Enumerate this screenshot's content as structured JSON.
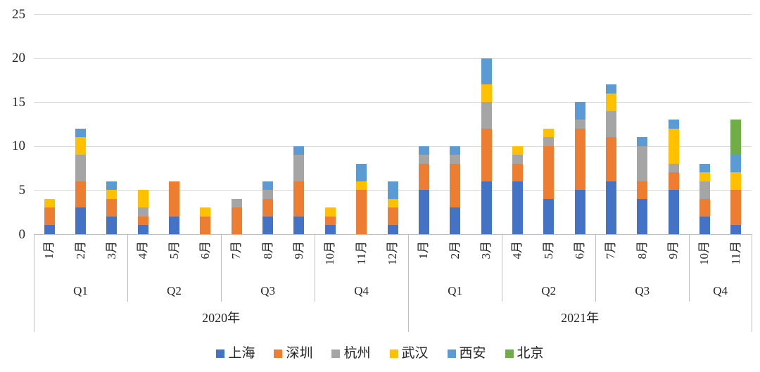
{
  "chart_data": {
    "type": "bar",
    "stacked": true,
    "orientation": "vertical",
    "title": "",
    "xlabel": "",
    "ylabel": "",
    "ylim": [
      0,
      25
    ],
    "yticks": [
      0,
      5,
      10,
      15,
      20,
      25
    ],
    "grid": true,
    "legend_position": "bottom",
    "categories": [
      "1月",
      "2月",
      "3月",
      "4月",
      "5月",
      "6月",
      "7月",
      "8月",
      "9月",
      "10月",
      "11月",
      "12月",
      "1月",
      "2月",
      "3月",
      "4月",
      "5月",
      "6月",
      "7月",
      "8月",
      "9月",
      "10月",
      "11月"
    ],
    "axis_groups": {
      "quarters": [
        {
          "label": "Q1",
          "span": 3
        },
        {
          "label": "Q2",
          "span": 3
        },
        {
          "label": "Q3",
          "span": 3
        },
        {
          "label": "Q4",
          "span": 3
        },
        {
          "label": "Q1",
          "span": 3
        },
        {
          "label": "Q2",
          "span": 3
        },
        {
          "label": "Q3",
          "span": 3
        },
        {
          "label": "Q4",
          "span": 2
        }
      ],
      "years": [
        {
          "label": "2020年",
          "span": 12
        },
        {
          "label": "2021年",
          "span": 11
        }
      ]
    },
    "series": [
      {
        "name": "上海",
        "color": "#4472C4",
        "values": [
          1,
          3,
          2,
          1,
          2,
          0,
          0,
          2,
          2,
          1,
          0,
          1,
          5,
          3,
          6,
          6,
          4,
          5,
          6,
          4,
          5,
          2,
          1
        ]
      },
      {
        "name": "深圳",
        "color": "#ED7D31",
        "values": [
          2,
          3,
          2,
          1,
          4,
          2,
          3,
          2,
          4,
          1,
          5,
          2,
          3,
          5,
          6,
          2,
          6,
          7,
          5,
          2,
          2,
          2,
          4
        ]
      },
      {
        "name": "杭州",
        "color": "#A5A5A5",
        "values": [
          0,
          3,
          0,
          1,
          0,
          0,
          1,
          1,
          3,
          0,
          0,
          0,
          1,
          1,
          3,
          1,
          1,
          1,
          3,
          4,
          1,
          2,
          0
        ]
      },
      {
        "name": "武汉",
        "color": "#FFC000",
        "values": [
          1,
          2,
          1,
          2,
          0,
          1,
          0,
          0,
          0,
          1,
          1,
          1,
          0,
          0,
          2,
          1,
          1,
          0,
          2,
          0,
          4,
          1,
          2
        ]
      },
      {
        "name": "西安",
        "color": "#5B9BD5",
        "values": [
          0,
          1,
          1,
          0,
          0,
          0,
          0,
          1,
          1,
          0,
          2,
          2,
          1,
          1,
          3,
          0,
          0,
          2,
          1,
          1,
          1,
          1,
          2
        ]
      },
      {
        "name": "北京",
        "color": "#70AD47",
        "values": [
          0,
          0,
          0,
          0,
          0,
          0,
          0,
          0,
          0,
          0,
          0,
          0,
          0,
          0,
          0,
          0,
          0,
          0,
          0,
          0,
          0,
          0,
          4
        ]
      }
    ],
    "style": {
      "gridline_color": "#D9D9D9",
      "axis_line_color": "#BFBFBF",
      "text_color": "#262626",
      "background": "#FFFFFF"
    }
  }
}
